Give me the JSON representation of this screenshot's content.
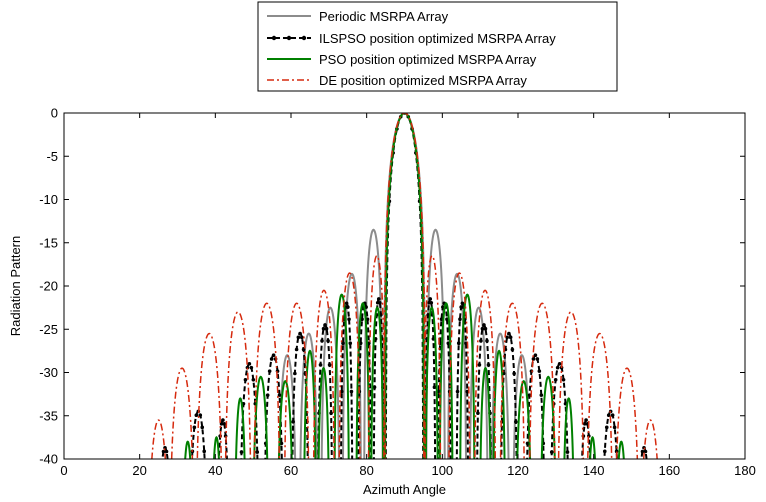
{
  "chart_data": {
    "type": "line",
    "title": "",
    "xlabel": "Azimuth Angle",
    "ylabel": "Radiation Pattern",
    "xlim": [
      0,
      180
    ],
    "ylim": [
      -40,
      0
    ],
    "xticks": [
      "0",
      "20",
      "40",
      "60",
      "80",
      "100",
      "120",
      "140",
      "160",
      "180"
    ],
    "yticks": [
      "0",
      "-5",
      "-10",
      "-15",
      "-20",
      "-25",
      "-30",
      "-35",
      "-40"
    ],
    "grid": false,
    "legend_position": "top-center",
    "series": [
      {
        "name": "Periodic MSRPA Array",
        "color": "#8c8c8c",
        "style": "solid",
        "marker": "none",
        "main_lobe": {
          "center": 90,
          "halfwidth": 5.5
        },
        "lobes": [
          {
            "center": 98.2,
            "peak": -13.5,
            "halfwidth": 2.5
          },
          {
            "center": 103.9,
            "peak": -18.6,
            "halfwidth": 2.5
          },
          {
            "center": 109.6,
            "peak": -22.5,
            "halfwidth": 2.5
          },
          {
            "center": 115.3,
            "peak": -25.5,
            "halfwidth": 2.5
          },
          {
            "center": 121.0,
            "peak": -28.0,
            "halfwidth": 2.5
          }
        ]
      },
      {
        "name": "ILSPSO position optimized MSRPA Array",
        "color": "#000000",
        "style": "dashed",
        "marker": "dot",
        "main_lobe": {
          "center": 90,
          "halfwidth": 5.0
        },
        "lobes": [
          {
            "center": 96.8,
            "peak": -21.5,
            "halfwidth": 1.4
          },
          {
            "center": 100.5,
            "peak": -22.0,
            "halfwidth": 1.8
          },
          {
            "center": 105.3,
            "peak": -22.0,
            "halfwidth": 1.6
          },
          {
            "center": 111.0,
            "peak": -24.5,
            "halfwidth": 2.0
          },
          {
            "center": 117.6,
            "peak": -25.5,
            "halfwidth": 2.3
          },
          {
            "center": 124.6,
            "peak": -28.0,
            "halfwidth": 2.6
          },
          {
            "center": 131.0,
            "peak": -29.0,
            "halfwidth": 2.6
          },
          {
            "center": 138.0,
            "peak": -35.5,
            "halfwidth": 1.8
          },
          {
            "center": 144.5,
            "peak": -34.5,
            "halfwidth": 2.6
          },
          {
            "center": 153.3,
            "peak": -38.7,
            "halfwidth": 2.0
          }
        ]
      },
      {
        "name": "PSO position optimized MSRPA Array",
        "color": "#008000",
        "style": "solid",
        "marker": "none",
        "main_lobe": {
          "center": 90,
          "halfwidth": 5.2
        },
        "lobes": [
          {
            "center": 97.2,
            "peak": -22.5,
            "halfwidth": 1.7
          },
          {
            "center": 101.0,
            "peak": -22.0,
            "halfwidth": 1.8
          },
          {
            "center": 106.6,
            "peak": -21.0,
            "halfwidth": 2.0
          },
          {
            "center": 111.4,
            "peak": -29.5,
            "halfwidth": 1.6
          },
          {
            "center": 115.0,
            "peak": -27.5,
            "halfwidth": 1.7
          },
          {
            "center": 121.5,
            "peak": -31.0,
            "halfwidth": 2.2
          },
          {
            "center": 128.0,
            "peak": -30.5,
            "halfwidth": 2.2
          },
          {
            "center": 133.4,
            "peak": -33.0,
            "halfwidth": 1.6
          },
          {
            "center": 139.7,
            "peak": -37.5,
            "halfwidth": 1.4
          },
          {
            "center": 147.3,
            "peak": -38.0,
            "halfwidth": 1.6
          }
        ]
      },
      {
        "name": "DE position optimized MSRPA Array",
        "color": "#d62a0e",
        "style": "dashdot",
        "marker": "none",
        "main_lobe": {
          "center": 90,
          "halfwidth": 5.5
        },
        "lobes": [
          {
            "center": 97.3,
            "peak": -16.5,
            "halfwidth": 2.3
          },
          {
            "center": 104.5,
            "peak": -18.5,
            "halfwidth": 2.9
          },
          {
            "center": 111.3,
            "peak": -20.5,
            "halfwidth": 2.9
          },
          {
            "center": 118.5,
            "peak": -22.0,
            "halfwidth": 3.4
          },
          {
            "center": 126.4,
            "peak": -22.0,
            "halfwidth": 3.6
          },
          {
            "center": 134.0,
            "peak": -23.0,
            "halfwidth": 3.6
          },
          {
            "center": 141.6,
            "peak": -25.5,
            "halfwidth": 3.6
          },
          {
            "center": 148.8,
            "peak": -29.5,
            "halfwidth": 3.4
          },
          {
            "center": 155.0,
            "peak": -35.5,
            "halfwidth": 3.0
          }
        ]
      }
    ]
  }
}
